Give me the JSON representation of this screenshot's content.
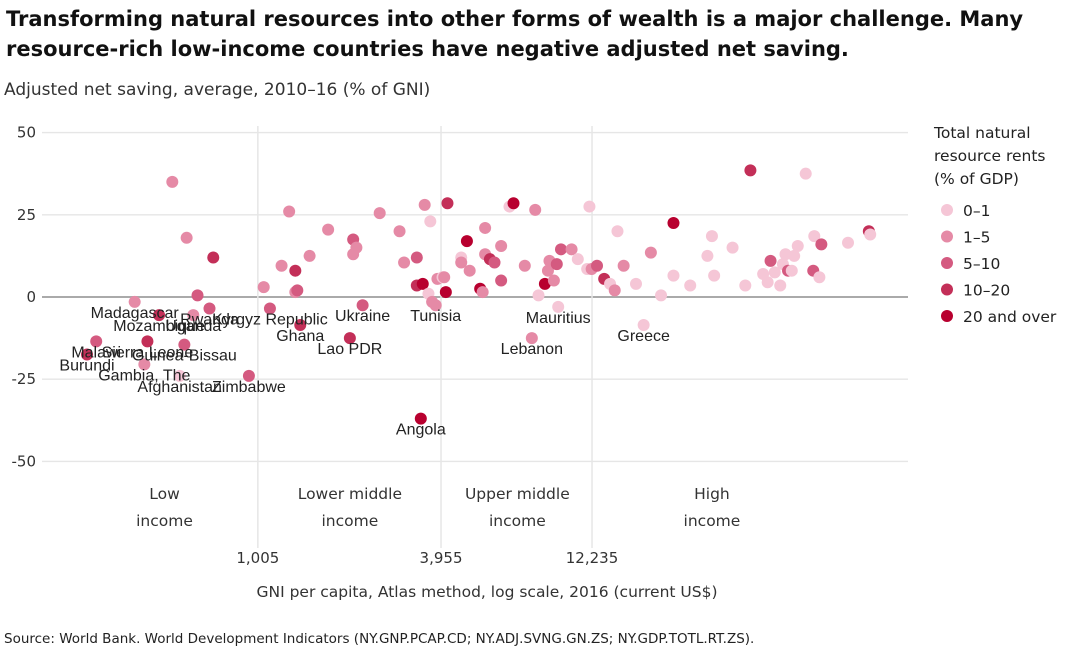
{
  "header": {
    "title": "Transforming natural resources into other forms of wealth is a major challenge. Many resource-rich low-income countries have negative adjusted net saving.",
    "subtitle": "Adjusted net saving, average, 2010–16 (% of GNI)"
  },
  "footer": {
    "source": "Source: World Bank. World Development Indicators (NY.GNP.PCAP.CD; NY.ADJ.SVNG.GN.ZS; NY.GDP.TOTL.RT.ZS)."
  },
  "chart_data": {
    "type": "scatter",
    "title": "",
    "xlabel": "GNI per capita, Atlas method, log scale, 2016 (current US$)",
    "ylabel": "",
    "x_scale": "log",
    "xlim": [
      200,
      130000
    ],
    "ylim": [
      -52,
      52
    ],
    "y_ticks": [
      50,
      25,
      0,
      -25,
      -50
    ],
    "x_ticks": [
      {
        "value": 1005,
        "label": "1,005"
      },
      {
        "value": 3955,
        "label": "3,955"
      },
      {
        "value": 12235,
        "label": "12,235"
      }
    ],
    "income_groups": [
      {
        "line1": "Low",
        "line2": "income",
        "center": 500
      },
      {
        "line1": "Lower middle",
        "line2": "income",
        "center": 2000
      },
      {
        "line1": "Upper middle",
        "line2": "income",
        "center": 7000
      },
      {
        "line1": "High",
        "line2": "income",
        "center": 30000
      }
    ],
    "grid": true,
    "legend": {
      "title_lines": [
        "Total natural",
        "resource rents",
        "(% of GDP)"
      ],
      "placement": "right",
      "items": [
        {
          "label": "0–1",
          "color": "#f5c6d6"
        },
        {
          "label": "1–5",
          "color": "#e58aa6"
        },
        {
          "label": "5–10",
          "color": "#d45a80"
        },
        {
          "label": "10–20",
          "color": "#c32f58"
        },
        {
          "label": "20 and over",
          "color": "#b8002f"
        }
      ]
    },
    "labeled_points": [
      {
        "name": "Madagascar",
        "x": 400,
        "y": -1.5,
        "cat": 1
      },
      {
        "name": "Mozambique",
        "x": 480,
        "y": -5.5,
        "cat": 3
      },
      {
        "name": "Uganda",
        "x": 620,
        "y": -5.5,
        "cat": 1
      },
      {
        "name": "Rwanda",
        "x": 700,
        "y": -3.5,
        "cat": 2
      },
      {
        "name": "Kyrgyz Republic",
        "x": 1100,
        "y": -3.5,
        "cat": 2
      },
      {
        "name": "Ghana",
        "x": 1380,
        "y": -8.5,
        "cat": 3
      },
      {
        "name": "Malawi",
        "x": 300,
        "y": -13.5,
        "cat": 2
      },
      {
        "name": "Sierra Leone",
        "x": 440,
        "y": -13.5,
        "cat": 3
      },
      {
        "name": "Guinea-Bissau",
        "x": 580,
        "y": -14.5,
        "cat": 2
      },
      {
        "name": "Burundi",
        "x": 280,
        "y": -17.5,
        "cat": 3
      },
      {
        "name": "Gambia, The",
        "x": 430,
        "y": -20.5,
        "cat": 1
      },
      {
        "name": "Afghanistan",
        "x": 560,
        "y": -24,
        "cat": 0
      },
      {
        "name": "Zimbabwe",
        "x": 940,
        "y": -24,
        "cat": 2
      },
      {
        "name": "Ukraine",
        "x": 2200,
        "y": -2.5,
        "cat": 2
      },
      {
        "name": "Tunisia",
        "x": 3800,
        "y": -2.5,
        "cat": 1
      },
      {
        "name": "Lao PDR",
        "x": 2000,
        "y": -12.5,
        "cat": 3
      },
      {
        "name": "Angola",
        "x": 3400,
        "y": -37,
        "cat": 4
      },
      {
        "name": "Mauritius",
        "x": 9500,
        "y": -3,
        "cat": 0
      },
      {
        "name": "Lebanon",
        "x": 7800,
        "y": -12.5,
        "cat": 1
      },
      {
        "name": "Greece",
        "x": 18000,
        "y": -8.5,
        "cat": 0
      }
    ],
    "points": [
      {
        "x": 530,
        "y": 35,
        "cat": 1
      },
      {
        "x": 590,
        "y": 18,
        "cat": 1
      },
      {
        "x": 720,
        "y": 12,
        "cat": 3
      },
      {
        "x": 640,
        "y": 0.5,
        "cat": 2
      },
      {
        "x": 1050,
        "y": 3,
        "cat": 1
      },
      {
        "x": 1200,
        "y": 9.5,
        "cat": 1
      },
      {
        "x": 1270,
        "y": 26,
        "cat": 1
      },
      {
        "x": 1330,
        "y": 8,
        "cat": 3
      },
      {
        "x": 1330,
        "y": 1.5,
        "cat": 1
      },
      {
        "x": 1350,
        "y": 2,
        "cat": 2
      },
      {
        "x": 1480,
        "y": 12.5,
        "cat": 1
      },
      {
        "x": 1700,
        "y": 20.5,
        "cat": 1
      },
      {
        "x": 2050,
        "y": 17.5,
        "cat": 2
      },
      {
        "x": 2050,
        "y": 13,
        "cat": 1
      },
      {
        "x": 2100,
        "y": 15,
        "cat": 1
      },
      {
        "x": 2500,
        "y": 25.5,
        "cat": 1
      },
      {
        "x": 2900,
        "y": 20,
        "cat": 1
      },
      {
        "x": 3000,
        "y": 10.5,
        "cat": 1
      },
      {
        "x": 3300,
        "y": 12,
        "cat": 2
      },
      {
        "x": 3300,
        "y": 3.5,
        "cat": 3
      },
      {
        "x": 3450,
        "y": 4,
        "cat": 4
      },
      {
        "x": 3500,
        "y": 28,
        "cat": 1
      },
      {
        "x": 3600,
        "y": 1,
        "cat": 0
      },
      {
        "x": 3650,
        "y": 23,
        "cat": 0
      },
      {
        "x": 3700,
        "y": -1.5,
        "cat": 1
      },
      {
        "x": 3850,
        "y": 5.5,
        "cat": 1
      },
      {
        "x": 4000,
        "y": 6,
        "cat": 0
      },
      {
        "x": 4050,
        "y": 6,
        "cat": 1
      },
      {
        "x": 4100,
        "y": 1.5,
        "cat": 4
      },
      {
        "x": 4150,
        "y": 28.5,
        "cat": 3
      },
      {
        "x": 4600,
        "y": 12,
        "cat": 0
      },
      {
        "x": 4600,
        "y": 10.5,
        "cat": 1
      },
      {
        "x": 4800,
        "y": 17,
        "cat": 4
      },
      {
        "x": 4900,
        "y": 8,
        "cat": 1
      },
      {
        "x": 5300,
        "y": 2.5,
        "cat": 4
      },
      {
        "x": 5400,
        "y": 1.5,
        "cat": 1
      },
      {
        "x": 5500,
        "y": 21,
        "cat": 1
      },
      {
        "x": 5500,
        "y": 13,
        "cat": 1
      },
      {
        "x": 5700,
        "y": 11.5,
        "cat": 3
      },
      {
        "x": 5900,
        "y": 10.5,
        "cat": 2
      },
      {
        "x": 6200,
        "y": 15.5,
        "cat": 1
      },
      {
        "x": 6200,
        "y": 5,
        "cat": 2
      },
      {
        "x": 6600,
        "y": 27.5,
        "cat": 0
      },
      {
        "x": 6800,
        "y": 28.5,
        "cat": 4
      },
      {
        "x": 7400,
        "y": 9.5,
        "cat": 1
      },
      {
        "x": 8000,
        "y": 26.5,
        "cat": 1
      },
      {
        "x": 8200,
        "y": 0.5,
        "cat": 0
      },
      {
        "x": 8600,
        "y": 4,
        "cat": 4
      },
      {
        "x": 8800,
        "y": 8,
        "cat": 1
      },
      {
        "x": 8900,
        "y": 11,
        "cat": 1
      },
      {
        "x": 9200,
        "y": 5,
        "cat": 1
      },
      {
        "x": 9400,
        "y": 10,
        "cat": 2
      },
      {
        "x": 9700,
        "y": 14.5,
        "cat": 2
      },
      {
        "x": 10500,
        "y": 14.5,
        "cat": 1
      },
      {
        "x": 11000,
        "y": 11.5,
        "cat": 0
      },
      {
        "x": 11800,
        "y": 8.5,
        "cat": 0
      },
      {
        "x": 12000,
        "y": 27.5,
        "cat": 0
      },
      {
        "x": 12200,
        "y": 8.5,
        "cat": 1
      },
      {
        "x": 12700,
        "y": 9.5,
        "cat": 2
      },
      {
        "x": 13400,
        "y": 5.5,
        "cat": 3
      },
      {
        "x": 14000,
        "y": 4,
        "cat": 0
      },
      {
        "x": 14500,
        "y": 2,
        "cat": 1
      },
      {
        "x": 14800,
        "y": 20,
        "cat": 0
      },
      {
        "x": 15500,
        "y": 9.5,
        "cat": 1
      },
      {
        "x": 17000,
        "y": 4,
        "cat": 0
      },
      {
        "x": 19000,
        "y": 13.5,
        "cat": 1
      },
      {
        "x": 20500,
        "y": 0.5,
        "cat": 0
      },
      {
        "x": 22500,
        "y": 6.5,
        "cat": 0
      },
      {
        "x": 22500,
        "y": 22.5,
        "cat": 4
      },
      {
        "x": 25500,
        "y": 3.5,
        "cat": 0
      },
      {
        "x": 29000,
        "y": 12.5,
        "cat": 0
      },
      {
        "x": 30000,
        "y": 18.5,
        "cat": 0
      },
      {
        "x": 30500,
        "y": 6.5,
        "cat": 0
      },
      {
        "x": 35000,
        "y": 15,
        "cat": 0
      },
      {
        "x": 38500,
        "y": 3.5,
        "cat": 0
      },
      {
        "x": 40000,
        "y": 38.5,
        "cat": 3
      },
      {
        "x": 44000,
        "y": 7,
        "cat": 0
      },
      {
        "x": 45500,
        "y": 4.5,
        "cat": 0
      },
      {
        "x": 46500,
        "y": 11,
        "cat": 2
      },
      {
        "x": 48000,
        "y": 7.5,
        "cat": 0
      },
      {
        "x": 50000,
        "y": 3.5,
        "cat": 0
      },
      {
        "x": 51000,
        "y": 10,
        "cat": 0
      },
      {
        "x": 52000,
        "y": 13,
        "cat": 0
      },
      {
        "x": 53000,
        "y": 8,
        "cat": 2
      },
      {
        "x": 54500,
        "y": 8,
        "cat": 0
      },
      {
        "x": 55500,
        "y": 12.5,
        "cat": 0
      },
      {
        "x": 57000,
        "y": 15.5,
        "cat": 0
      },
      {
        "x": 60500,
        "y": 37.5,
        "cat": 0
      },
      {
        "x": 64000,
        "y": 8,
        "cat": 2
      },
      {
        "x": 64500,
        "y": 18.5,
        "cat": 0
      },
      {
        "x": 67000,
        "y": 6,
        "cat": 0
      },
      {
        "x": 68000,
        "y": 16,
        "cat": 2
      },
      {
        "x": 83000,
        "y": 16.5,
        "cat": 0
      },
      {
        "x": 97000,
        "y": 20,
        "cat": 3
      },
      {
        "x": 98000,
        "y": 19,
        "cat": 0
      }
    ]
  }
}
